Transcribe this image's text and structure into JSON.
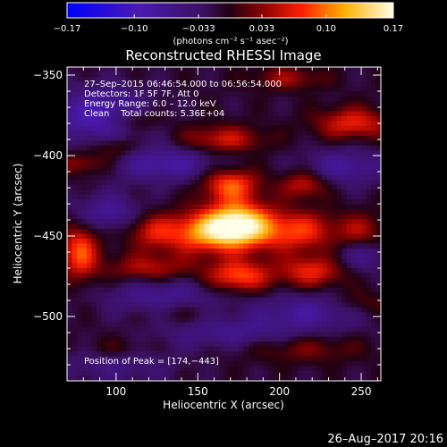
{
  "colorbar": {
    "ticks": [
      "−0.17",
      "−0.10",
      "−0.033",
      "0.033",
      "0.10",
      "0.17"
    ],
    "unit_label": "(photons cm⁻² s⁻¹ asec⁻²)",
    "range": [
      -0.17,
      0.17
    ]
  },
  "chart_data": {
    "type": "heatmap",
    "title": "Reconstructed RHESSI Image",
    "xlabel": "Heliocentric X (arcsec)",
    "ylabel": "Heliocentric Y (arcsec)",
    "xlim": [
      70,
      262
    ],
    "ylim": [
      -540,
      -345
    ],
    "x_ticks": [
      100,
      150,
      200,
      250
    ],
    "y_ticks": [
      -350,
      -400,
      -450,
      -500
    ],
    "x_tick_labels": [
      "100",
      "150",
      "200",
      "250"
    ],
    "y_tick_labels": [
      "−350",
      "−400",
      "−450",
      "−500"
    ],
    "colorscale": "blue-purple-red-yellow-white",
    "value_range": [
      -0.17,
      0.17
    ],
    "peak_position": [
      174,
      -443
    ],
    "annotations": [
      "27–Sep–2015 06:46:54.000 to 06:56:54.000",
      "Detectors: 1F 5F 7F, Att 0",
      "Energy Range: 6.0 – 12.0 keV",
      "Clean    Total counts: 5.36E+04",
      "Position of Peak = [174,−443]"
    ]
  },
  "timestamp": "26–Aug–2017 20:16"
}
